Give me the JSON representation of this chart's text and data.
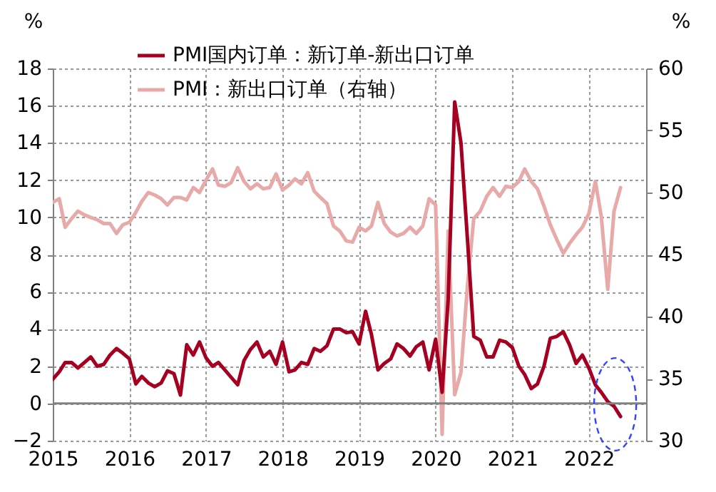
{
  "chart_data": {
    "type": "line",
    "x": [
      "2015-01",
      "2015-02",
      "2015-03",
      "2015-04",
      "2015-05",
      "2015-06",
      "2015-07",
      "2015-08",
      "2015-09",
      "2015-10",
      "2015-11",
      "2015-12",
      "2016-01",
      "2016-02",
      "2016-03",
      "2016-04",
      "2016-05",
      "2016-06",
      "2016-07",
      "2016-08",
      "2016-09",
      "2016-10",
      "2016-11",
      "2016-12",
      "2017-01",
      "2017-02",
      "2017-03",
      "2017-04",
      "2017-05",
      "2017-06",
      "2017-07",
      "2017-08",
      "2017-09",
      "2017-10",
      "2017-11",
      "2017-12",
      "2018-01",
      "2018-02",
      "2018-03",
      "2018-04",
      "2018-05",
      "2018-06",
      "2018-07",
      "2018-08",
      "2018-09",
      "2018-10",
      "2018-11",
      "2018-12",
      "2019-01",
      "2019-02",
      "2019-03",
      "2019-04",
      "2019-05",
      "2019-06",
      "2019-07",
      "2019-08",
      "2019-09",
      "2019-10",
      "2019-11",
      "2019-12",
      "2020-01",
      "2020-02",
      "2020-03",
      "2020-04",
      "2020-05",
      "2020-06",
      "2020-07",
      "2020-08",
      "2020-09",
      "2020-10",
      "2020-11",
      "2020-12",
      "2021-01",
      "2021-02",
      "2021-03",
      "2021-04",
      "2021-05",
      "2021-06",
      "2021-07",
      "2021-08",
      "2021-09",
      "2021-10",
      "2021-11",
      "2021-12",
      "2022-01",
      "2022-02",
      "2022-03",
      "2022-04",
      "2022-05",
      "2022-06"
    ],
    "series": [
      {
        "name": "PMI国内订单：新订单-新出口订单",
        "color": "#a50021",
        "values": [
          1.3,
          1.7,
          2.2,
          2.2,
          1.9,
          2.2,
          2.5,
          2.0,
          2.1,
          2.6,
          2.95,
          2.7,
          2.4,
          1.05,
          1.45,
          1.1,
          0.9,
          1.1,
          1.75,
          1.6,
          0.45,
          3.15,
          2.6,
          3.3,
          2.45,
          2.0,
          2.2,
          1.8,
          1.4,
          1.0,
          2.3,
          2.9,
          3.3,
          2.5,
          2.8,
          2.1,
          3.3,
          1.7,
          1.8,
          2.2,
          2.1,
          2.95,
          2.8,
          3.1,
          4.0,
          4.0,
          3.8,
          3.85,
          3.2,
          4.95,
          3.7,
          1.8,
          2.15,
          2.4,
          3.2,
          2.95,
          2.55,
          3.05,
          3.3,
          1.8,
          3.45,
          0.6,
          5.6,
          16.2,
          14.0,
          8.8,
          3.6,
          3.4,
          2.5,
          2.5,
          3.4,
          3.3,
          3.0,
          2.0,
          1.55,
          0.8,
          1.05,
          2.0,
          3.5,
          3.6,
          3.85,
          3.15,
          2.15,
          2.6,
          1.9,
          1.0,
          0.6,
          0.1,
          -0.15,
          -0.7
        ]
      },
      {
        "name": "PMI：新出口订单（右轴）",
        "color": "#e8a9a9",
        "axis": "y2",
        "values": [
          49.2,
          49.5,
          47.2,
          47.9,
          48.5,
          48.2,
          48.0,
          47.8,
          47.5,
          47.5,
          46.7,
          47.4,
          47.6,
          48.4,
          49.3,
          50.0,
          49.8,
          49.5,
          49.0,
          49.6,
          49.6,
          49.4,
          50.4,
          50.0,
          51.0,
          51.9,
          50.6,
          50.5,
          50.8,
          52.0,
          50.9,
          50.3,
          50.7,
          50.3,
          50.4,
          51.5,
          50.2,
          50.6,
          51.1,
          50.7,
          51.6,
          50.1,
          49.6,
          49.1,
          47.3,
          46.9,
          46.1,
          46.0,
          47.2,
          46.9,
          47.3,
          49.2,
          47.5,
          46.8,
          46.5,
          46.7,
          47.2,
          46.7,
          47.3,
          49.5,
          49.0,
          30.5,
          46.9,
          33.7,
          35.5,
          42.5,
          47.9,
          48.5,
          49.7,
          50.4,
          49.7,
          50.5,
          50.4,
          50.9,
          51.9,
          50.9,
          50.3,
          48.9,
          47.4,
          46.2,
          45.1,
          45.9,
          46.6,
          47.2,
          48.3,
          50.9,
          48.1,
          42.2,
          48.5,
          50.4
        ]
      }
    ],
    "ylabel": "%",
    "y2label": "%",
    "xlim": [
      "2015-01",
      "2022-10"
    ],
    "xticks": [
      "2015",
      "2016",
      "2017",
      "2018",
      "2019",
      "2020",
      "2021",
      "2022"
    ],
    "ylim": [
      -2,
      18
    ],
    "yticks": [
      -2,
      0,
      2,
      4,
      6,
      8,
      10,
      12,
      14,
      16,
      18
    ],
    "y2lim": [
      30,
      60
    ],
    "y2ticks": [
      30,
      35,
      40,
      45,
      50,
      55,
      60
    ],
    "ref_lines": [
      {
        "axis": "y",
        "value": 0,
        "color": "#808080"
      }
    ],
    "grid": true,
    "legend": "top",
    "marker": "none",
    "line_style": "solid"
  }
}
